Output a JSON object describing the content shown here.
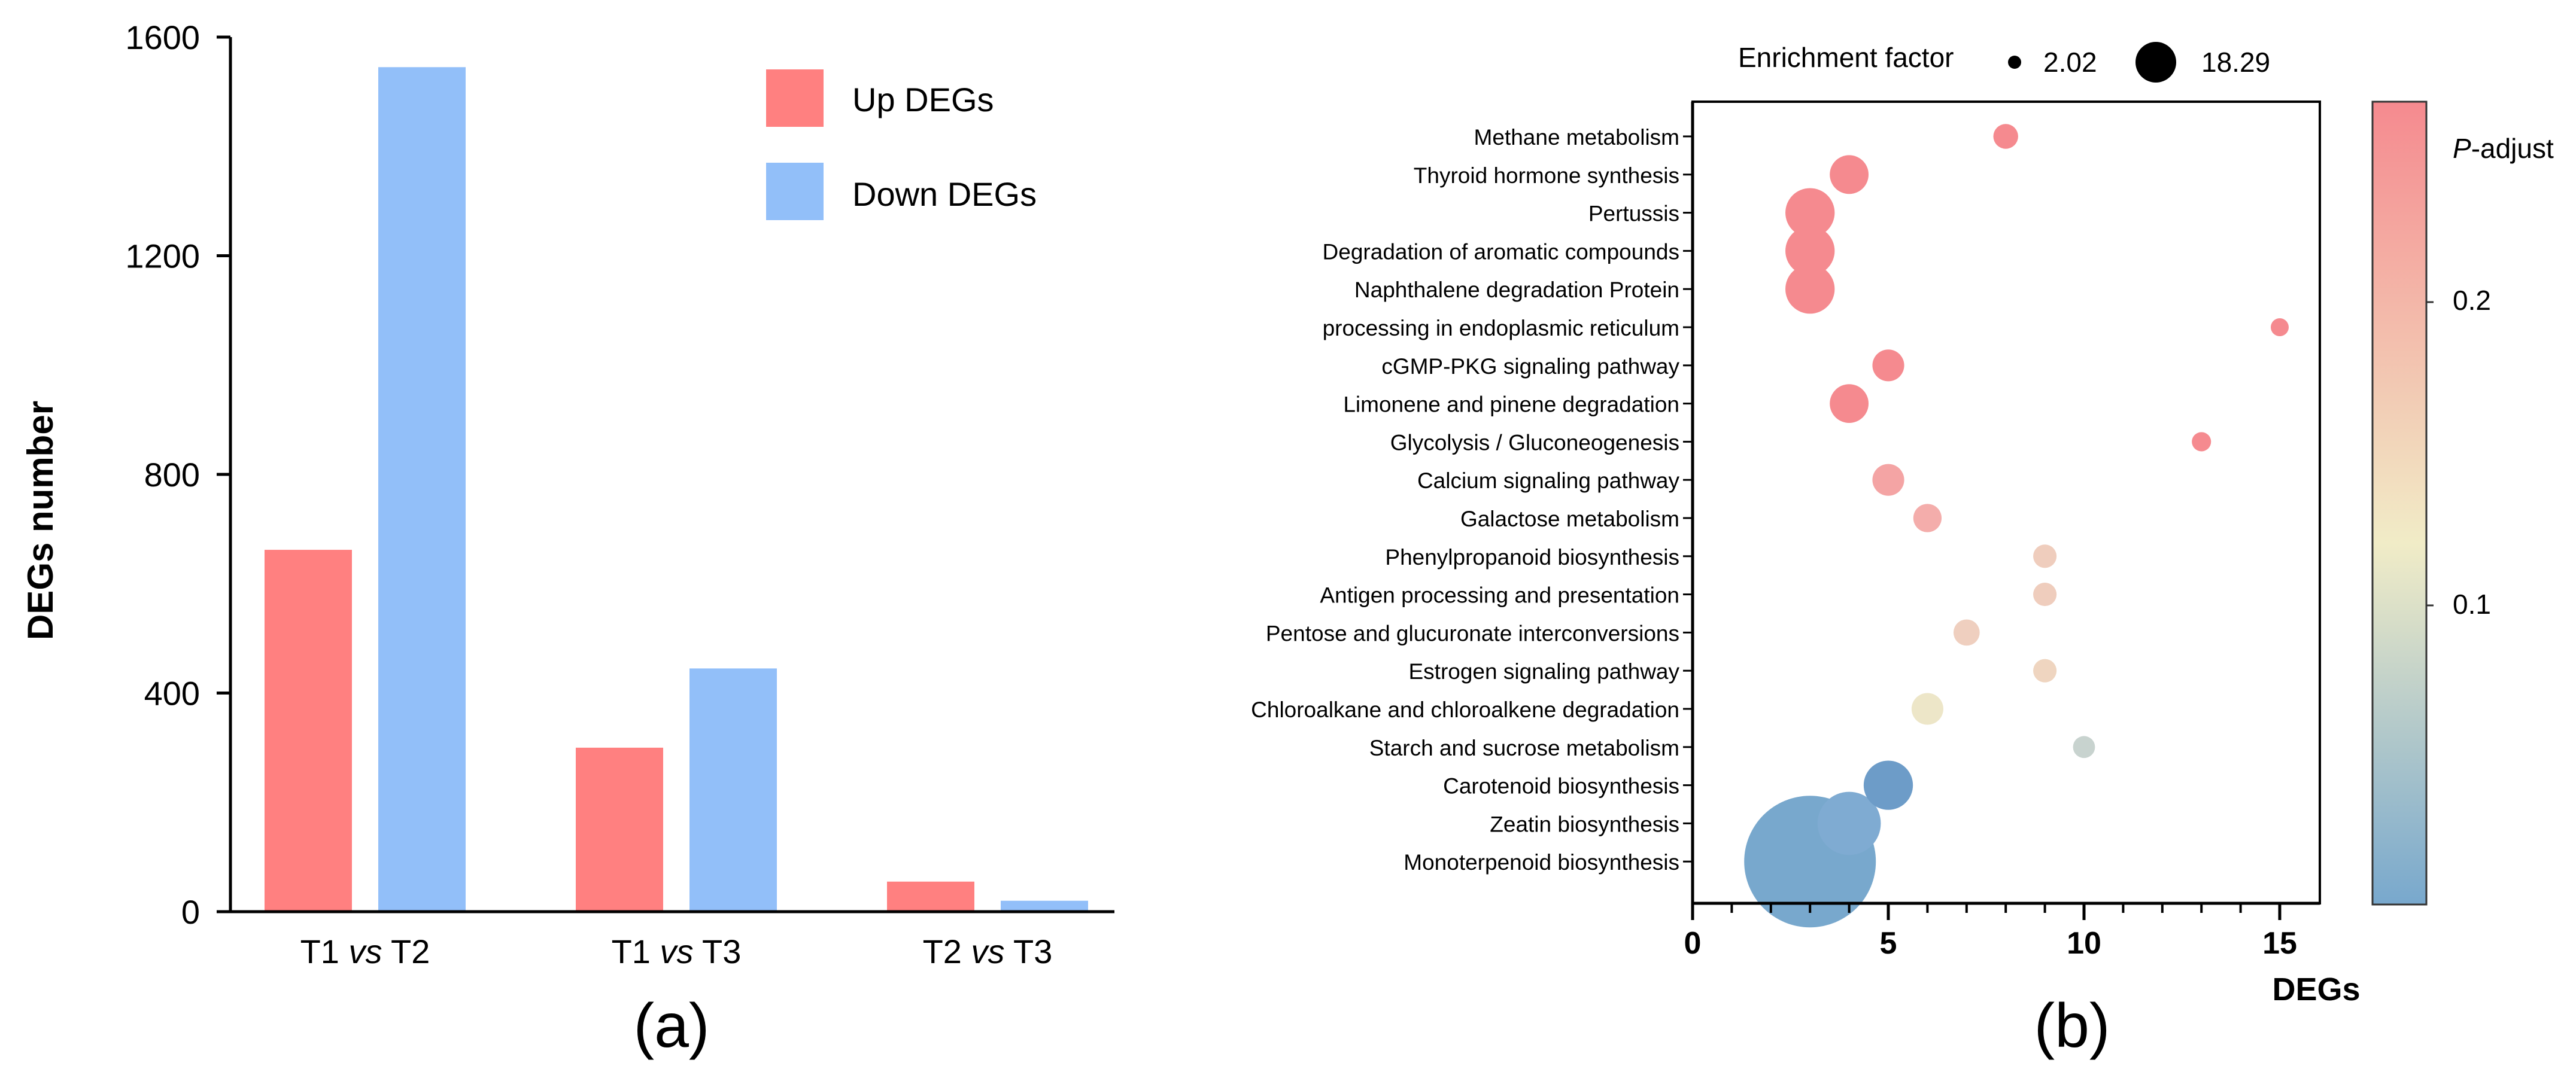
{
  "chart_data": [
    {
      "panel_label": "(a)",
      "type": "bar",
      "ylabel": "DEGs number",
      "ylim": [
        0,
        1600
      ],
      "yticks": [
        0,
        400,
        800,
        1200,
        1600
      ],
      "categories": [
        {
          "left": "T1",
          "mid": "vs",
          "right": "T2"
        },
        {
          "left": "T1",
          "mid": "vs",
          "right": "T3"
        },
        {
          "left": "T2",
          "mid": "vs",
          "right": "T3"
        }
      ],
      "series": [
        {
          "name": "Up DEGs",
          "color": "#ff8080",
          "values": [
            662,
            300,
            55
          ]
        },
        {
          "name": "Down DEGs",
          "color": "#92bff9",
          "values": [
            1545,
            445,
            20
          ]
        }
      ]
    },
    {
      "panel_label": "(b)",
      "type": "scatter",
      "xlabel": "DEGs",
      "xlim": [
        0,
        16
      ],
      "xticks": [
        0,
        5,
        10,
        15
      ],
      "size_legend": {
        "title": "Enrichment factor",
        "min": 2.02,
        "max": 18.29
      },
      "colorbar": {
        "title_italic": "P",
        "title_rest": "-adjust",
        "ticks": [
          0.2,
          0.1
        ],
        "low_color": "#78a8cd",
        "mid_color": "#f1ecc7",
        "high_color": "#f58a8f"
      },
      "points": [
        {
          "pathway": "Methane metabolism",
          "degs": 8,
          "enrichment": 3.0,
          "color": "#f58a8f"
        },
        {
          "pathway": "Thyroid hormone synthesis",
          "degs": 4,
          "enrichment": 5.0,
          "color": "#f58a8f"
        },
        {
          "pathway": "Pertussis",
          "degs": 3,
          "enrichment": 6.5,
          "color": "#f58a8f"
        },
        {
          "pathway": "Degradation of aromatic compounds",
          "degs": 3,
          "enrichment": 6.5,
          "color": "#f58a8f"
        },
        {
          "pathway": "Naphthalene degradation Protein",
          "degs": 3,
          "enrichment": 6.5,
          "color": "#f58a8f"
        },
        {
          "pathway": "processing in endoplasmic reticulum",
          "degs": 15,
          "enrichment": 2.02,
          "color": "#f58a8f"
        },
        {
          "pathway": "cGMP-PKG signaling pathway",
          "degs": 5,
          "enrichment": 4.0,
          "color": "#f58a8f"
        },
        {
          "pathway": "Limonene and pinene degradation",
          "degs": 4,
          "enrichment": 5.0,
          "color": "#f58a8f"
        },
        {
          "pathway": "Glycolysis / Gluconeogenesis",
          "degs": 13,
          "enrichment": 2.2,
          "color": "#f58a8f"
        },
        {
          "pathway": "Calcium signaling pathway",
          "degs": 5,
          "enrichment": 4.0,
          "color": "#f4a4a4"
        },
        {
          "pathway": "Galactose metabolism",
          "degs": 6,
          "enrichment": 3.5,
          "color": "#f4adab"
        },
        {
          "pathway": "Phenylpropanoid biosynthesis",
          "degs": 9,
          "enrichment": 2.8,
          "color": "#efcdbd"
        },
        {
          "pathway": "Antigen processing and presentation",
          "degs": 9,
          "enrichment": 2.8,
          "color": "#efcdbd"
        },
        {
          "pathway": "Pentose and glucuronate interconversions",
          "degs": 7,
          "enrichment": 3.2,
          "color": "#efcfbf"
        },
        {
          "pathway": "Estrogen signaling pathway",
          "degs": 9,
          "enrichment": 2.8,
          "color": "#efd5c0"
        },
        {
          "pathway": "Chloroalkane and chloroalkene degradation",
          "degs": 6,
          "enrichment": 4.0,
          "color": "#ede6c8"
        },
        {
          "pathway": "Starch and sucrose metabolism",
          "degs": 10,
          "enrichment": 2.6,
          "color": "#c8d3cf"
        },
        {
          "pathway": "Carotenoid biosynthesis",
          "degs": 5,
          "enrichment": 6.5,
          "color": "#6d9cc8"
        },
        {
          "pathway": "Zeatin biosynthesis",
          "degs": 4,
          "enrichment": 8.5,
          "color": "#7fabd2"
        },
        {
          "pathway": "Monoterpenoid biosynthesis",
          "degs": 3,
          "enrichment": 18.29,
          "color": "#78a8cd"
        }
      ]
    }
  ]
}
